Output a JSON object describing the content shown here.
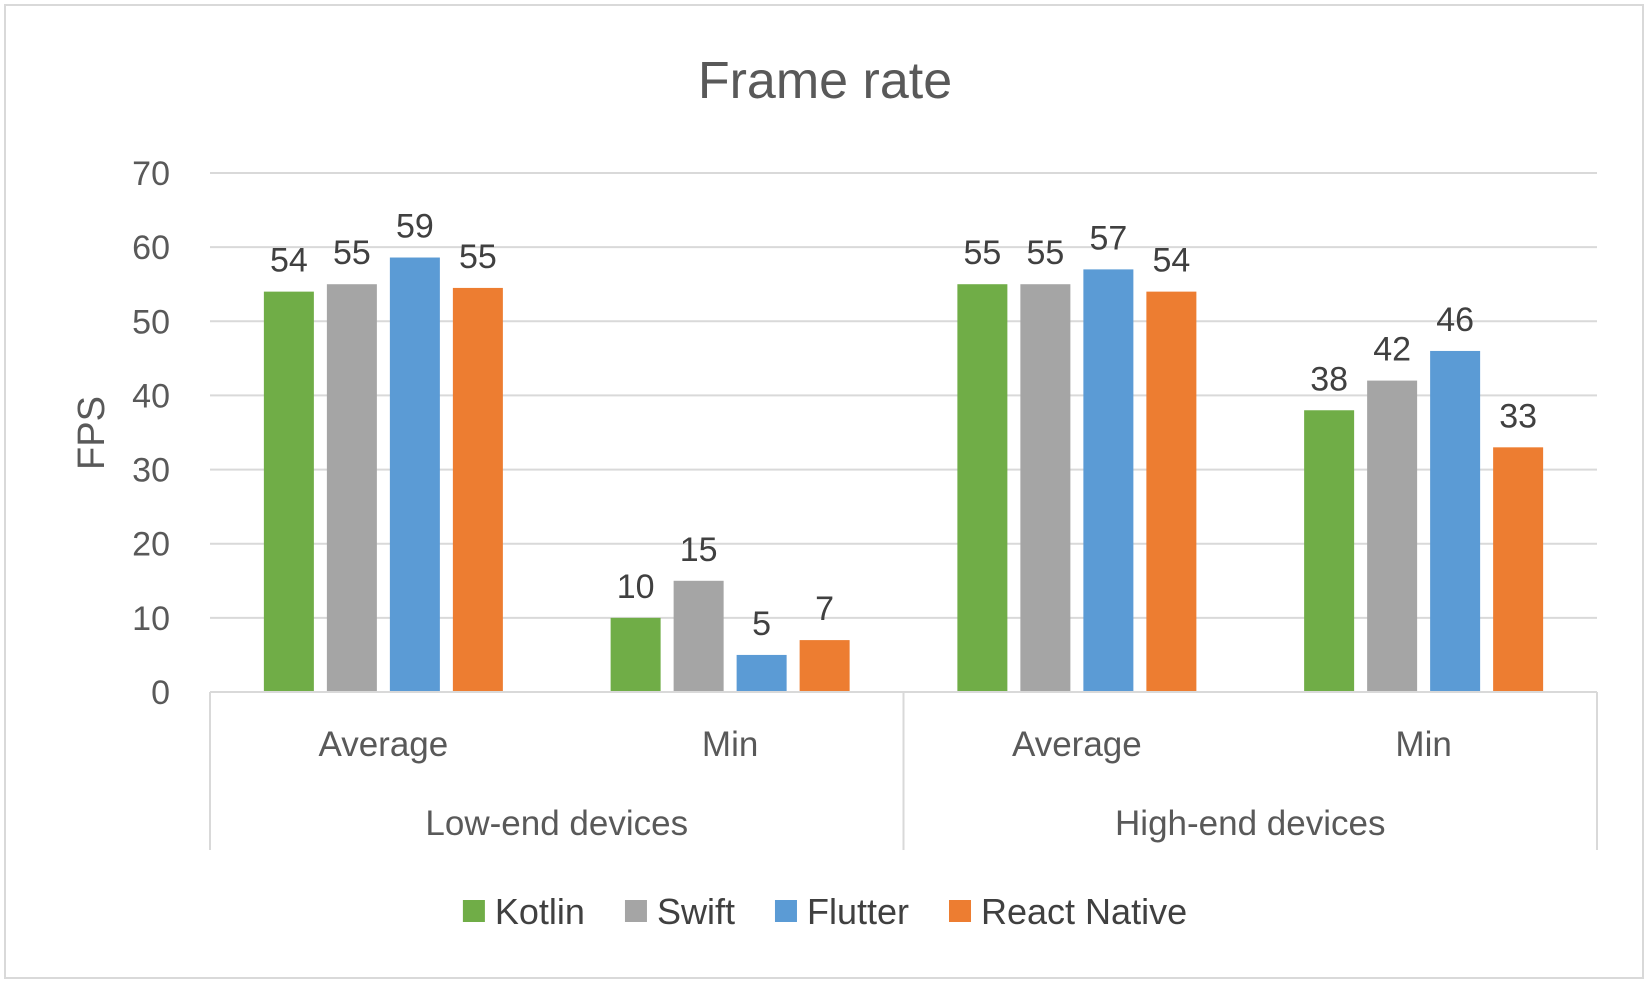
{
  "chart_data": {
    "type": "bar",
    "title": "Frame rate",
    "ylabel": "FPS",
    "xlabel": "",
    "ylim": [
      0,
      70
    ],
    "yticks": [
      0,
      10,
      20,
      30,
      40,
      50,
      60,
      70
    ],
    "grid": true,
    "legend_position": "bottom",
    "groups": [
      "Low-end devices",
      "High-end devices"
    ],
    "categories": [
      "Average",
      "Min",
      "Average",
      "Min"
    ],
    "series": [
      {
        "name": "Kotlin",
        "color": "#70ad47",
        "values": [
          54,
          10,
          55,
          38
        ],
        "labels": [
          "54",
          "10",
          "55",
          "38"
        ]
      },
      {
        "name": "Swift",
        "color": "#a5a5a5",
        "values": [
          55,
          15,
          55,
          42
        ],
        "labels": [
          "55",
          "15",
          "55",
          "42"
        ]
      },
      {
        "name": "Flutter",
        "color": "#5b9bd5",
        "values": [
          58.6,
          5,
          57,
          46
        ],
        "labels": [
          "59",
          "5",
          "57",
          "46"
        ]
      },
      {
        "name": "React Native",
        "color": "#ed7d31",
        "values": [
          54.5,
          7,
          54,
          33
        ],
        "labels": [
          "55",
          "7",
          "54",
          "33"
        ]
      }
    ]
  }
}
